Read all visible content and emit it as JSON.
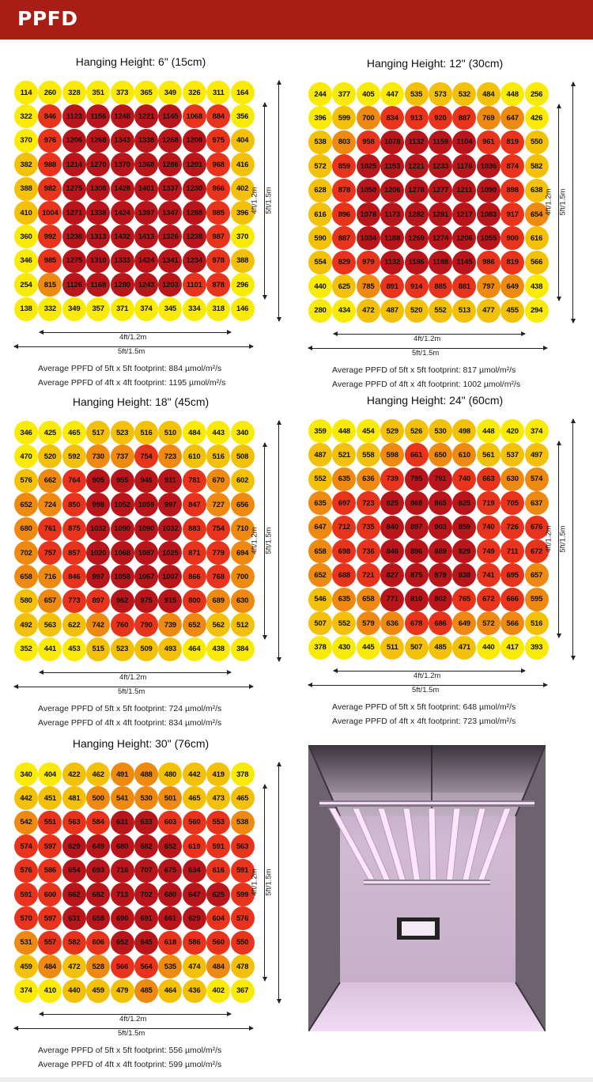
{
  "header": {
    "title": "PPFD"
  },
  "dimensions": {
    "w4": "4ft/1.2m",
    "w5": "5ft/1.5m"
  },
  "colors": {
    "header": "#a81e14",
    "yellow": "#f9ea07",
    "gold": "#f4c10a",
    "orange": "#ee8a12",
    "red": "#e8341c",
    "darkred": "#b8161b",
    "photo_tent": "#c7b0c8",
    "photo_light": "#ffe6ff"
  },
  "chart_data": [
    {
      "type": "heatmap",
      "title": "Hanging Height: 6\" (15cm)",
      "width_label_inner": "4ft/1.2m",
      "width_label_outer": "5ft/1.5m",
      "height_label_inner": "4ft/1.2m",
      "height_label_outer": "5ft/1.5m",
      "avg_5ft": "Average PPFD of 5ft x 5ft footprint: 884 µmol/m²/s",
      "avg_4ft": "Average PPFD of 4ft x 4ft footprint: 1195 µmol/m²/s",
      "rows": [
        [
          114,
          260,
          328,
          351,
          373,
          365,
          349,
          326,
          311,
          164
        ],
        [
          322,
          846,
          1123,
          1156,
          1248,
          1221,
          1145,
          1068,
          884,
          356
        ],
        [
          370,
          976,
          1206,
          1268,
          1343,
          1338,
          1268,
          1208,
          975,
          404
        ],
        [
          382,
          988,
          1214,
          1270,
          1370,
          1368,
          1286,
          1201,
          968,
          416
        ],
        [
          388,
          982,
          1275,
          1308,
          1428,
          1401,
          1337,
          1230,
          966,
          402
        ],
        [
          410,
          1004,
          1271,
          1338,
          1424,
          1397,
          1347,
          1288,
          985,
          396
        ],
        [
          360,
          992,
          1236,
          1313,
          1432,
          1413,
          1326,
          1238,
          987,
          370
        ],
        [
          346,
          985,
          1275,
          1310,
          1333,
          1424,
          1341,
          1234,
          978,
          388
        ],
        [
          254,
          815,
          1126,
          1168,
          1280,
          1243,
          1203,
          1101,
          878,
          296
        ],
        [
          138,
          332,
          349,
          357,
          371,
          374,
          345,
          334,
          318,
          146
        ]
      ]
    },
    {
      "type": "heatmap",
      "title": "Hanging Height: 12\" (30cm)",
      "width_label_inner": "4ft/1.2m",
      "width_label_outer": "5ft/1.5m",
      "height_label_inner": "4ft/1.2m",
      "height_label_outer": "5ft/1.5m",
      "avg_5ft": "Average PPFD of 5ft x 5ft footprint: 817 µmol/m²/s",
      "avg_4ft": "Average PPFD of 4ft x 4ft footprint: 1002 µmol/m²/s",
      "rows": [
        [
          244,
          377,
          405,
          447,
          535,
          573,
          532,
          484,
          448,
          256
        ],
        [
          396,
          599,
          700,
          834,
          913,
          920,
          887,
          769,
          647,
          426
        ],
        [
          538,
          803,
          958,
          1078,
          1132,
          1159,
          1104,
          961,
          819,
          550
        ],
        [
          572,
          859,
          1025,
          1153,
          1221,
          1233,
          1176,
          1036,
          874,
          582
        ],
        [
          628,
          878,
          1050,
          1206,
          1278,
          1277,
          1211,
          1090,
          898,
          638
        ],
        [
          616,
          896,
          1078,
          1173,
          1282,
          1281,
          1217,
          1083,
          917,
          654
        ],
        [
          590,
          887,
          1034,
          1188,
          1269,
          1274,
          1206,
          1055,
          900,
          616
        ],
        [
          554,
          829,
          979,
          1132,
          1186,
          1188,
          1145,
          986,
          819,
          566
        ],
        [
          440,
          625,
          785,
          891,
          914,
          885,
          881,
          797,
          649,
          438
        ],
        [
          280,
          434,
          472,
          487,
          520,
          552,
          513,
          477,
          455,
          294
        ]
      ]
    },
    {
      "type": "heatmap",
      "title": "Hanging Height: 18\" (45cm)",
      "width_label_inner": "4ft/1.2m",
      "width_label_outer": "5ft/1.5m",
      "height_label_inner": "4ft/1.2m",
      "height_label_outer": "5ft/1.5m",
      "avg_5ft": "Average PPFD of 5ft x 5ft footprint: 724 µmol/m²/s",
      "avg_4ft": "Average PPFD of 4ft x 4ft footprint: 834 µmol/m²/s",
      "rows": [
        [
          346,
          425,
          465,
          517,
          523,
          516,
          510,
          484,
          443,
          340
        ],
        [
          470,
          520,
          592,
          730,
          737,
          754,
          723,
          610,
          516,
          508
        ],
        [
          576,
          662,
          764,
          905,
          955,
          946,
          911,
          781,
          670,
          602
        ],
        [
          652,
          724,
          850,
          998,
          1052,
          1059,
          997,
          847,
          727,
          656
        ],
        [
          680,
          761,
          875,
          1032,
          1090,
          1090,
          1032,
          883,
          754,
          710
        ],
        [
          702,
          757,
          857,
          1020,
          1068,
          1087,
          1025,
          871,
          779,
          694
        ],
        [
          658,
          716,
          846,
          997,
          1058,
          1067,
          1007,
          866,
          768,
          700
        ],
        [
          580,
          657,
          773,
          897,
          962,
          975,
          915,
          800,
          689,
          630
        ],
        [
          492,
          563,
          622,
          742,
          760,
          790,
          739,
          652,
          562,
          512
        ],
        [
          352,
          441,
          453,
          515,
          523,
          509,
          493,
          464,
          438,
          384
        ]
      ]
    },
    {
      "type": "heatmap",
      "title": "Hanging Height: 24\" (60cm)",
      "width_label_inner": "4ft/1.2m",
      "width_label_outer": "5ft/1.5m",
      "height_label_inner": "4ft/1.2m",
      "height_label_outer": "5ft/1.5m",
      "avg_5ft": "Average PPFD of 5ft x 5ft footprint: 648 µmol/m²/s",
      "avg_4ft": "Average PPFD of 4ft x 4ft footprint: 723 µmol/m²/s",
      "rows": [
        [
          359,
          448,
          454,
          529,
          526,
          530,
          498,
          448,
          420,
          374
        ],
        [
          487,
          521,
          558,
          598,
          661,
          650,
          610,
          561,
          537,
          497
        ],
        [
          552,
          635,
          636,
          739,
          795,
          791,
          740,
          663,
          630,
          574
        ],
        [
          635,
          697,
          723,
          825,
          868,
          865,
          825,
          719,
          705,
          637
        ],
        [
          647,
          712,
          735,
          840,
          897,
          903,
          859,
          740,
          726,
          676
        ],
        [
          658,
          698,
          736,
          846,
          896,
          889,
          829,
          749,
          711,
          672
        ],
        [
          652,
          688,
          721,
          827,
          875,
          879,
          838,
          741,
          695,
          657
        ],
        [
          546,
          635,
          658,
          771,
          810,
          802,
          765,
          672,
          666,
          595
        ],
        [
          507,
          552,
          579,
          636,
          678,
          686,
          649,
          572,
          566,
          516
        ],
        [
          378,
          430,
          445,
          511,
          507,
          485,
          471,
          440,
          417,
          393
        ]
      ]
    },
    {
      "type": "heatmap",
      "title": "Hanging Height: 30\" (76cm)",
      "width_label_inner": "4ft/1.2m",
      "width_label_outer": "5ft/1.5m",
      "height_label_inner": "4ft/1.2m",
      "height_label_outer": "5ft/1.5m",
      "avg_5ft": "Average PPFD of 5ft x 5ft footprint: 556 µmol/m²/s",
      "avg_4ft": "Average PPFD of 4ft x 4ft footprint: 599 µmol/m²/s",
      "rows": [
        [
          340,
          404,
          422,
          462,
          491,
          488,
          480,
          442,
          419,
          378
        ],
        [
          442,
          451,
          481,
          500,
          541,
          530,
          501,
          465,
          473,
          465
        ],
        [
          542,
          551,
          563,
          584,
          631,
          633,
          603,
          560,
          553,
          538
        ],
        [
          574,
          597,
          629,
          649,
          680,
          682,
          652,
          619,
          591,
          563
        ],
        [
          576,
          586,
          654,
          693,
          716,
          707,
          675,
          634,
          616,
          591
        ],
        [
          591,
          600,
          662,
          682,
          713,
          702,
          680,
          647,
          625,
          599
        ],
        [
          570,
          597,
          631,
          658,
          690,
          691,
          661,
          629,
          604,
          576
        ],
        [
          531,
          557,
          582,
          606,
          652,
          645,
          618,
          586,
          560,
          550
        ],
        [
          459,
          484,
          472,
          528,
          566,
          564,
          535,
          474,
          484,
          478
        ],
        [
          374,
          410,
          440,
          459,
          479,
          485,
          464,
          436,
          402,
          367
        ]
      ]
    }
  ]
}
